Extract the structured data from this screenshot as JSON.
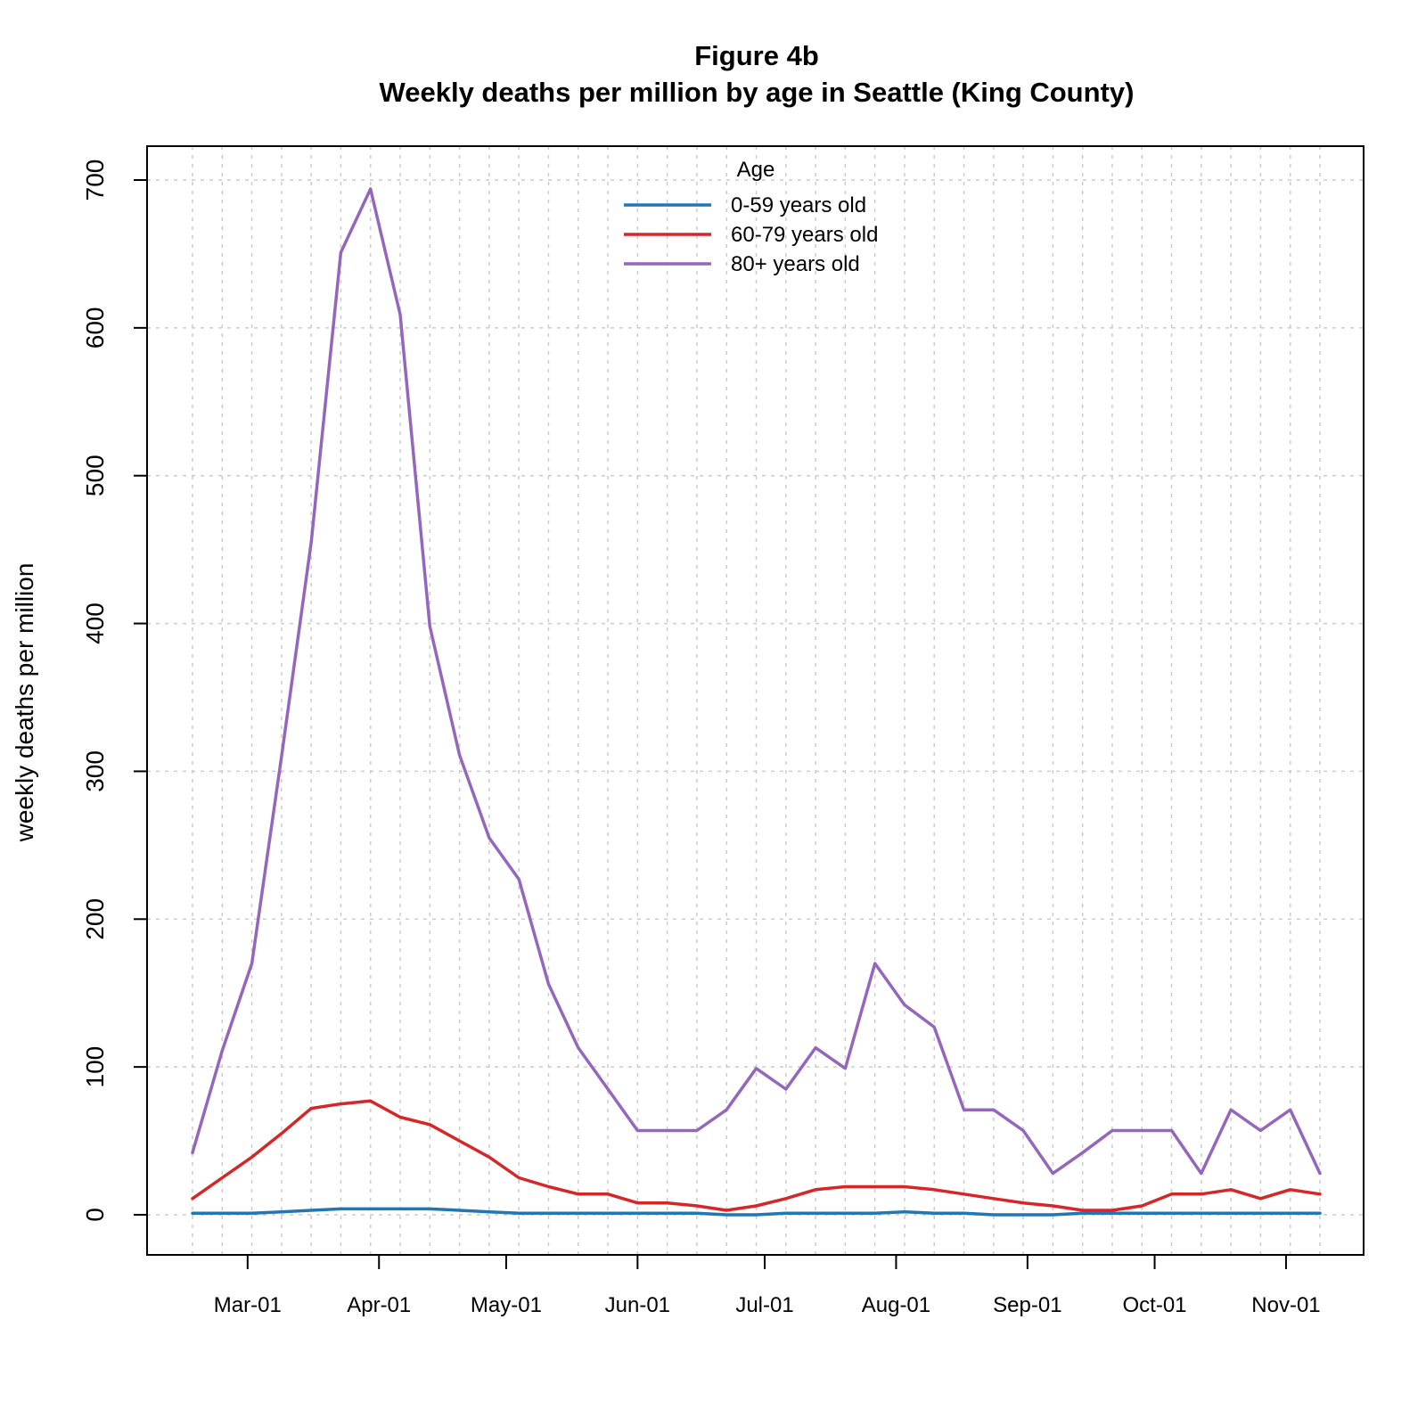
{
  "chart_data": {
    "type": "line",
    "title": "Figure 4b",
    "subtitle": "Weekly deaths per million by age in Seattle (King County)",
    "xlabel": "",
    "ylabel": "weekly deaths per million",
    "ylim": [
      0,
      700
    ],
    "yticks": [
      "0",
      "100",
      "200",
      "300",
      "400",
      "500",
      "600",
      "700"
    ],
    "xticks": [
      "Mar-01",
      "Apr-01",
      "May-01",
      "Jun-01",
      "Jul-01",
      "Aug-01",
      "Sep-01",
      "Oct-01",
      "Nov-01"
    ],
    "xtick_dates": [
      "2020-03-01",
      "2020-04-01",
      "2020-05-01",
      "2020-06-01",
      "2020-07-01",
      "2020-08-01",
      "2020-09-01",
      "2020-10-01",
      "2020-11-01"
    ],
    "grid": true,
    "legend_title": "Age",
    "legend_position": "top-center",
    "x": [
      "2020-02-17",
      "2020-02-24",
      "2020-03-02",
      "2020-03-09",
      "2020-03-16",
      "2020-03-23",
      "2020-03-30",
      "2020-04-06",
      "2020-04-13",
      "2020-04-20",
      "2020-04-27",
      "2020-05-04",
      "2020-05-11",
      "2020-05-18",
      "2020-05-25",
      "2020-06-01",
      "2020-06-08",
      "2020-06-15",
      "2020-06-22",
      "2020-06-29",
      "2020-07-06",
      "2020-07-13",
      "2020-07-20",
      "2020-07-27",
      "2020-08-03",
      "2020-08-10",
      "2020-08-17",
      "2020-08-24",
      "2020-08-31",
      "2020-09-07",
      "2020-09-14",
      "2020-09-21",
      "2020-09-28",
      "2020-10-05",
      "2020-10-12",
      "2020-10-19",
      "2020-10-26",
      "2020-11-02",
      "2020-11-09"
    ],
    "series": [
      {
        "name": "0-59 years old",
        "color": "#1f77b4",
        "values": [
          1,
          1,
          1,
          2,
          3,
          4,
          4,
          4,
          4,
          3,
          2,
          1,
          1,
          1,
          1,
          1,
          1,
          1,
          0,
          0,
          1,
          1,
          1,
          1,
          2,
          1,
          1,
          0,
          0,
          0,
          1,
          1,
          1,
          1,
          1,
          1,
          1,
          1,
          1
        ]
      },
      {
        "name": "60-79 years old",
        "color": "#d62728",
        "values": [
          11,
          25,
          39,
          55,
          72,
          75,
          77,
          66,
          61,
          50,
          39,
          25,
          19,
          14,
          14,
          8,
          8,
          6,
          3,
          6,
          11,
          17,
          19,
          19,
          19,
          17,
          14,
          11,
          8,
          6,
          3,
          3,
          6,
          14,
          14,
          17,
          11,
          17,
          14
        ]
      },
      {
        "name": "80+ years old",
        "color": "#9467bd",
        "values": [
          42,
          111,
          170,
          310,
          455,
          651,
          694,
          609,
          398,
          311,
          255,
          227,
          156,
          113,
          85,
          57,
          57,
          57,
          71,
          99,
          85,
          113,
          99,
          170,
          142,
          127,
          71,
          71,
          57,
          28,
          42,
          57,
          57,
          57,
          28,
          71,
          57,
          71,
          28
        ]
      }
    ]
  }
}
